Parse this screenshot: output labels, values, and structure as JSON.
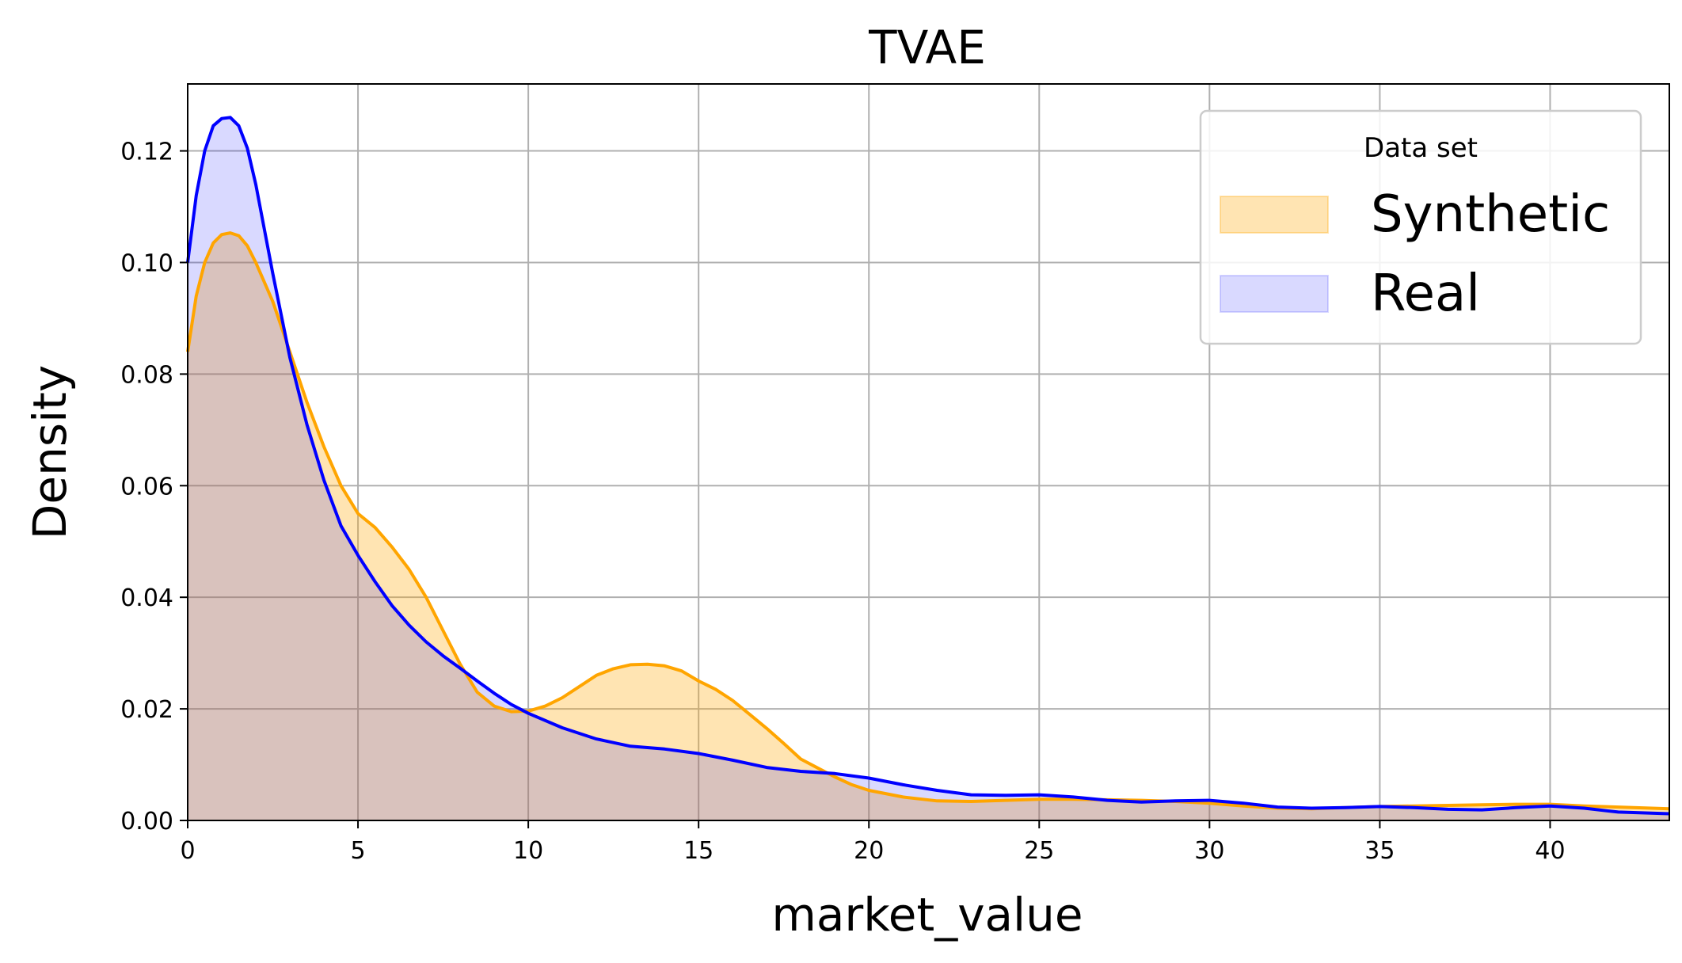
{
  "chart_data": {
    "type": "area",
    "title": "TVAE",
    "xlabel": "market_value",
    "ylabel": "Density",
    "xlim": [
      0,
      43.5
    ],
    "ylim": [
      0,
      0.132
    ],
    "xticks": [
      0,
      5,
      10,
      15,
      20,
      25,
      30,
      35,
      40
    ],
    "yticks": [
      0.0,
      0.02,
      0.04,
      0.06,
      0.08,
      0.1,
      0.12
    ],
    "xtick_labels": [
      "0",
      "5",
      "10",
      "15",
      "20",
      "25",
      "30",
      "35",
      "40"
    ],
    "ytick_labels": [
      "0.00",
      "0.02",
      "0.04",
      "0.06",
      "0.08",
      "0.10",
      "0.12"
    ],
    "grid": true,
    "legend": {
      "title": "Data set",
      "placement": "top-right",
      "entries": [
        "Synthetic",
        "Real"
      ]
    },
    "series": [
      {
        "name": "Synthetic",
        "line_color": "#ffa500",
        "fill_color": "#ffa500",
        "fill_opacity": 0.3,
        "x": [
          0,
          0.25,
          0.5,
          0.75,
          1.0,
          1.25,
          1.5,
          1.75,
          2.0,
          2.5,
          3.0,
          3.5,
          4.0,
          4.5,
          5.0,
          5.5,
          6.0,
          6.5,
          7.0,
          7.5,
          8.0,
          8.5,
          9.0,
          9.5,
          10.0,
          10.5,
          11.0,
          11.5,
          12.0,
          12.5,
          13.0,
          13.5,
          14.0,
          14.5,
          15.0,
          15.5,
          16.0,
          16.5,
          17.0,
          17.5,
          18.0,
          18.5,
          19.0,
          19.5,
          20.0,
          21.0,
          22.0,
          23.0,
          24.0,
          25.0,
          26.0,
          27.0,
          28.0,
          29.0,
          30.0,
          31.0,
          32.0,
          33.0,
          34.0,
          35.0,
          36.0,
          37.0,
          38.0,
          39.0,
          40.0,
          41.0,
          42.0,
          43.5
        ],
        "y": [
          0.084,
          0.094,
          0.1,
          0.1035,
          0.105,
          0.1053,
          0.1048,
          0.103,
          0.1,
          0.093,
          0.084,
          0.075,
          0.067,
          0.06,
          0.055,
          0.0525,
          0.049,
          0.045,
          0.04,
          0.034,
          0.028,
          0.023,
          0.0205,
          0.0195,
          0.0196,
          0.0205,
          0.022,
          0.024,
          0.026,
          0.0272,
          0.0279,
          0.028,
          0.0277,
          0.0268,
          0.025,
          0.0235,
          0.0215,
          0.019,
          0.0165,
          0.0138,
          0.011,
          0.0094,
          0.0078,
          0.0064,
          0.0054,
          0.0042,
          0.0035,
          0.0034,
          0.0036,
          0.0038,
          0.0038,
          0.0037,
          0.0036,
          0.0034,
          0.0031,
          0.0026,
          0.0022,
          0.0021,
          0.0023,
          0.0025,
          0.0026,
          0.0027,
          0.0028,
          0.0029,
          0.0029,
          0.0026,
          0.0024,
          0.0021
        ]
      },
      {
        "name": "Real",
        "line_color": "#0000ff",
        "fill_color": "#0000ff",
        "fill_opacity": 0.15,
        "x": [
          0,
          0.25,
          0.5,
          0.75,
          1.0,
          1.25,
          1.5,
          1.75,
          2.0,
          2.5,
          3.0,
          3.5,
          4.0,
          4.5,
          5.0,
          5.5,
          6.0,
          6.5,
          7.0,
          7.5,
          8.0,
          8.5,
          9.0,
          9.5,
          10.0,
          11.0,
          12.0,
          13.0,
          14.0,
          15.0,
          16.0,
          17.0,
          18.0,
          19.0,
          20.0,
          21.0,
          22.0,
          23.0,
          24.0,
          25.0,
          26.0,
          27.0,
          28.0,
          29.0,
          30.0,
          31.0,
          32.0,
          33.0,
          34.0,
          35.0,
          36.0,
          37.0,
          38.0,
          39.0,
          40.0,
          41.0,
          42.0,
          43.5
        ],
        "y": [
          0.1,
          0.112,
          0.12,
          0.1245,
          0.1258,
          0.126,
          0.1245,
          0.1205,
          0.114,
          0.098,
          0.083,
          0.071,
          0.061,
          0.0528,
          0.0475,
          0.0428,
          0.0385,
          0.035,
          0.032,
          0.0295,
          0.0273,
          0.025,
          0.0228,
          0.0208,
          0.0192,
          0.0166,
          0.0146,
          0.0133,
          0.0128,
          0.012,
          0.0108,
          0.0095,
          0.0088,
          0.0084,
          0.0076,
          0.0064,
          0.0054,
          0.0046,
          0.0045,
          0.0046,
          0.0042,
          0.0036,
          0.0033,
          0.0035,
          0.0036,
          0.0031,
          0.0024,
          0.0022,
          0.0023,
          0.0025,
          0.0023,
          0.002,
          0.0019,
          0.0023,
          0.0026,
          0.0022,
          0.0015,
          0.0012
        ]
      }
    ]
  }
}
